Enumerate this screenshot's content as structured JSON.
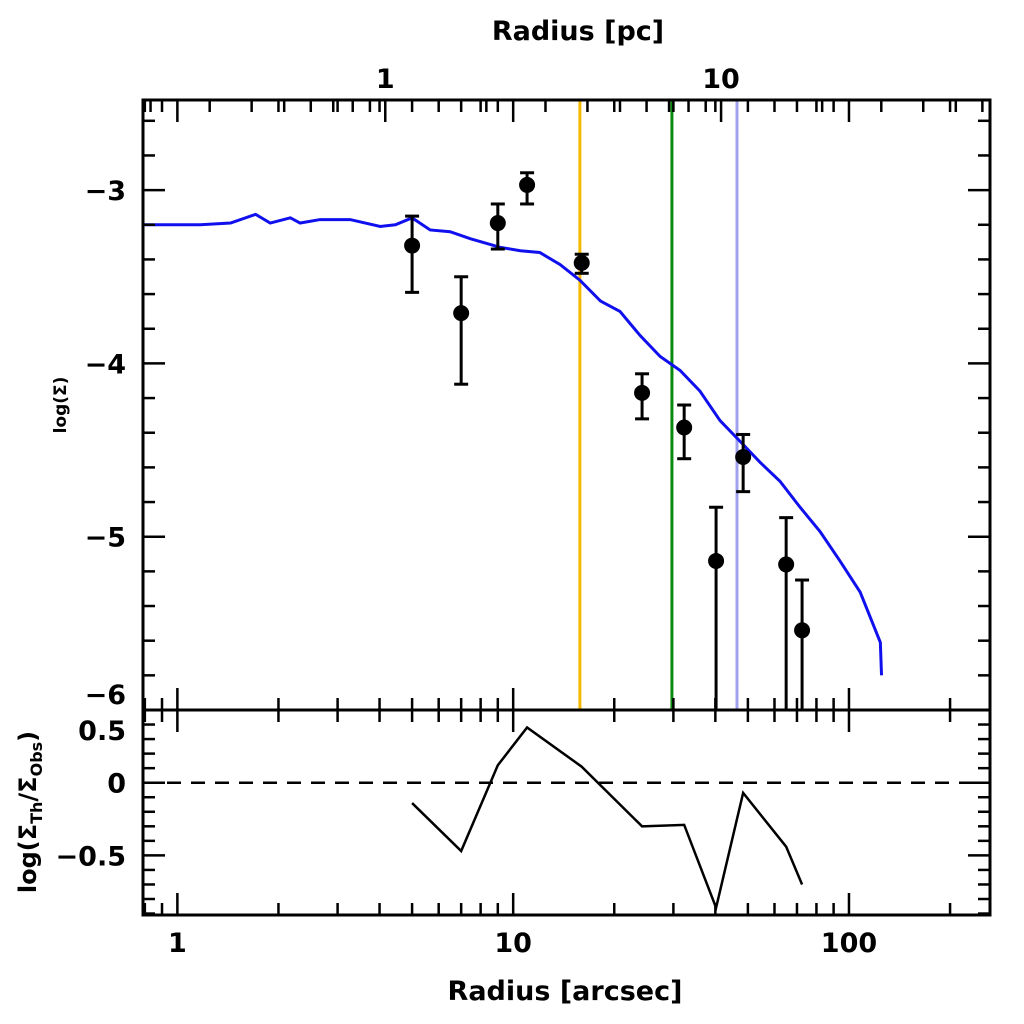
{
  "chart_data": [
    {
      "panel": "main",
      "type": "scatter",
      "xlabel": "Radius [arcsec]",
      "top_xlabel": "Radius [pc]",
      "ylabel": "log(Σ)",
      "xscale": "log",
      "xlim": [
        0.79,
        263
      ],
      "ylim": [
        -6.0,
        -2.48
      ],
      "x_ticks": [
        1,
        10,
        100
      ],
      "x_tick_labels": [
        "1",
        "10",
        "100"
      ],
      "top_ticks_pc": [
        1,
        10
      ],
      "top_tick_labels": [
        "1",
        "10"
      ],
      "arcsec_per_pc": 4.16,
      "y_ticks": [
        -3,
        -4,
        -5,
        -6
      ],
      "y_tick_labels": [
        "−3",
        "−4",
        "−5",
        "−6"
      ],
      "observed": {
        "name": "Observed",
        "color": "#000000",
        "x": [
          5.0,
          7.0,
          9.0,
          11.0,
          16.0,
          24.2,
          32.3,
          40.2,
          48.4,
          65.0,
          72.5
        ],
        "y": [
          -3.32,
          -3.71,
          -3.19,
          -2.97,
          -3.42,
          -4.17,
          -4.37,
          -5.14,
          -4.54,
          -5.16,
          -5.54
        ],
        "y_err_high": [
          -3.15,
          -3.5,
          -3.08,
          -2.9,
          -3.37,
          -4.06,
          -4.24,
          -4.83,
          -4.41,
          -4.89,
          -5.25
        ],
        "y_err_low": [
          -3.59,
          -4.12,
          -3.34,
          -3.08,
          -3.48,
          -4.32,
          -4.55,
          -6.0,
          -4.74,
          -6.0,
          -6.0
        ]
      },
      "model": {
        "name": "Model",
        "type": "line",
        "color": "#1010ee",
        "x": [
          0.79,
          1.17,
          1.44,
          1.71,
          1.89,
          2.17,
          2.32,
          2.66,
          3.27,
          4.02,
          4.46,
          5.0,
          5.66,
          6.49,
          7.45,
          9.14,
          10.5,
          12.0,
          13.8,
          15.8,
          18.2,
          20.8,
          23.9,
          27.4,
          31.4,
          36.0,
          41.3,
          47.4,
          54.3,
          62.3,
          71.5,
          82.0,
          94.0,
          108,
          124,
          125
        ],
        "y": [
          -3.2,
          -3.2,
          -3.19,
          -3.14,
          -3.19,
          -3.16,
          -3.19,
          -3.17,
          -3.17,
          -3.21,
          -3.2,
          -3.16,
          -3.23,
          -3.24,
          -3.28,
          -3.33,
          -3.35,
          -3.36,
          -3.43,
          -3.52,
          -3.64,
          -3.7,
          -3.84,
          -3.96,
          -4.04,
          -4.16,
          -4.33,
          -4.45,
          -4.57,
          -4.68,
          -4.83,
          -4.97,
          -5.14,
          -5.32,
          -5.61,
          -5.8
        ]
      },
      "vertical_lines": [
        {
          "x": 15.8,
          "color": "#f5b800"
        },
        {
          "x": 29.7,
          "color": "#0a8a0a"
        },
        {
          "x": 46.4,
          "color": "#a0a0f0"
        }
      ]
    },
    {
      "panel": "residual",
      "type": "line",
      "xlabel": "Radius [arcsec]",
      "ylabel": "log(Σ_Th/Σ_Obs)",
      "ylabel_parts": {
        "pre": "log(Σ",
        "sub1": "Th",
        "mid": "/Σ",
        "sub2": "Obs",
        "post": ")"
      },
      "xscale": "log",
      "xlim": [
        0.79,
        263
      ],
      "ylim": [
        -0.91,
        0.5
      ],
      "y_ticks": [
        0.5,
        0,
        -0.5
      ],
      "y_tick_labels": [
        "0.5",
        "0",
        "−0.5"
      ],
      "reference_line": {
        "y": 0,
        "style": "dashed"
      },
      "series": [
        {
          "name": "Residual",
          "color": "#000000",
          "x": [
            5.0,
            7.0,
            9.0,
            11.0,
            16.0,
            24.2,
            32.3,
            40.2,
            48.4,
            65.0,
            72.5
          ],
          "y": [
            -0.14,
            -0.47,
            0.12,
            0.38,
            0.11,
            -0.3,
            -0.29,
            -0.86,
            -0.07,
            -0.44,
            -0.7
          ]
        }
      ]
    }
  ]
}
